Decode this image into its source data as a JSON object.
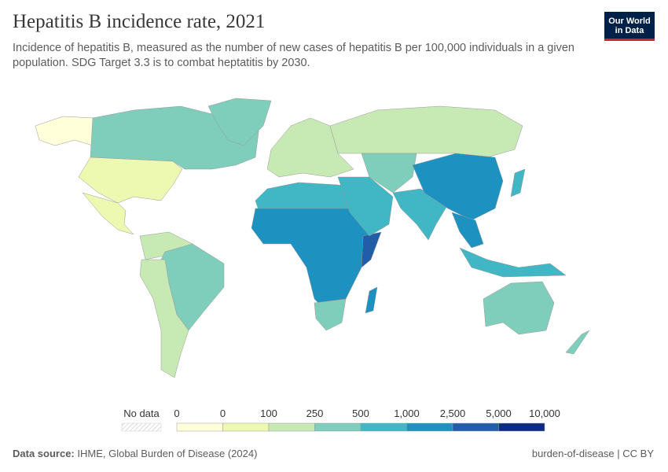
{
  "header": {
    "title": "Hepatitis B incidence rate, 2021",
    "subtitle": "Incidence of hepatitis B, measured as the number of new cases of hepatitis B per 100,000 individuals in a given population. SDG Target 3.3 is to combat heptatitis by 2030.",
    "logo": [
      "Our World",
      "in Data"
    ]
  },
  "legend": {
    "no_data": "No data",
    "ticks": [
      "0",
      "0",
      "100",
      "250",
      "500",
      "1,000",
      "2,500",
      "5,000",
      "10,000"
    ],
    "colors": [
      "#ffffd9",
      "#edf8b1",
      "#c7e9b4",
      "#7fcdbb",
      "#41b6c4",
      "#1d91c0",
      "#225ea8",
      "#0c2c84"
    ]
  },
  "footer": {
    "source_label": "Data source:",
    "source": "IHME, Global Burden of Disease (2024)",
    "right": "burden-of-disease | CC BY"
  }
}
